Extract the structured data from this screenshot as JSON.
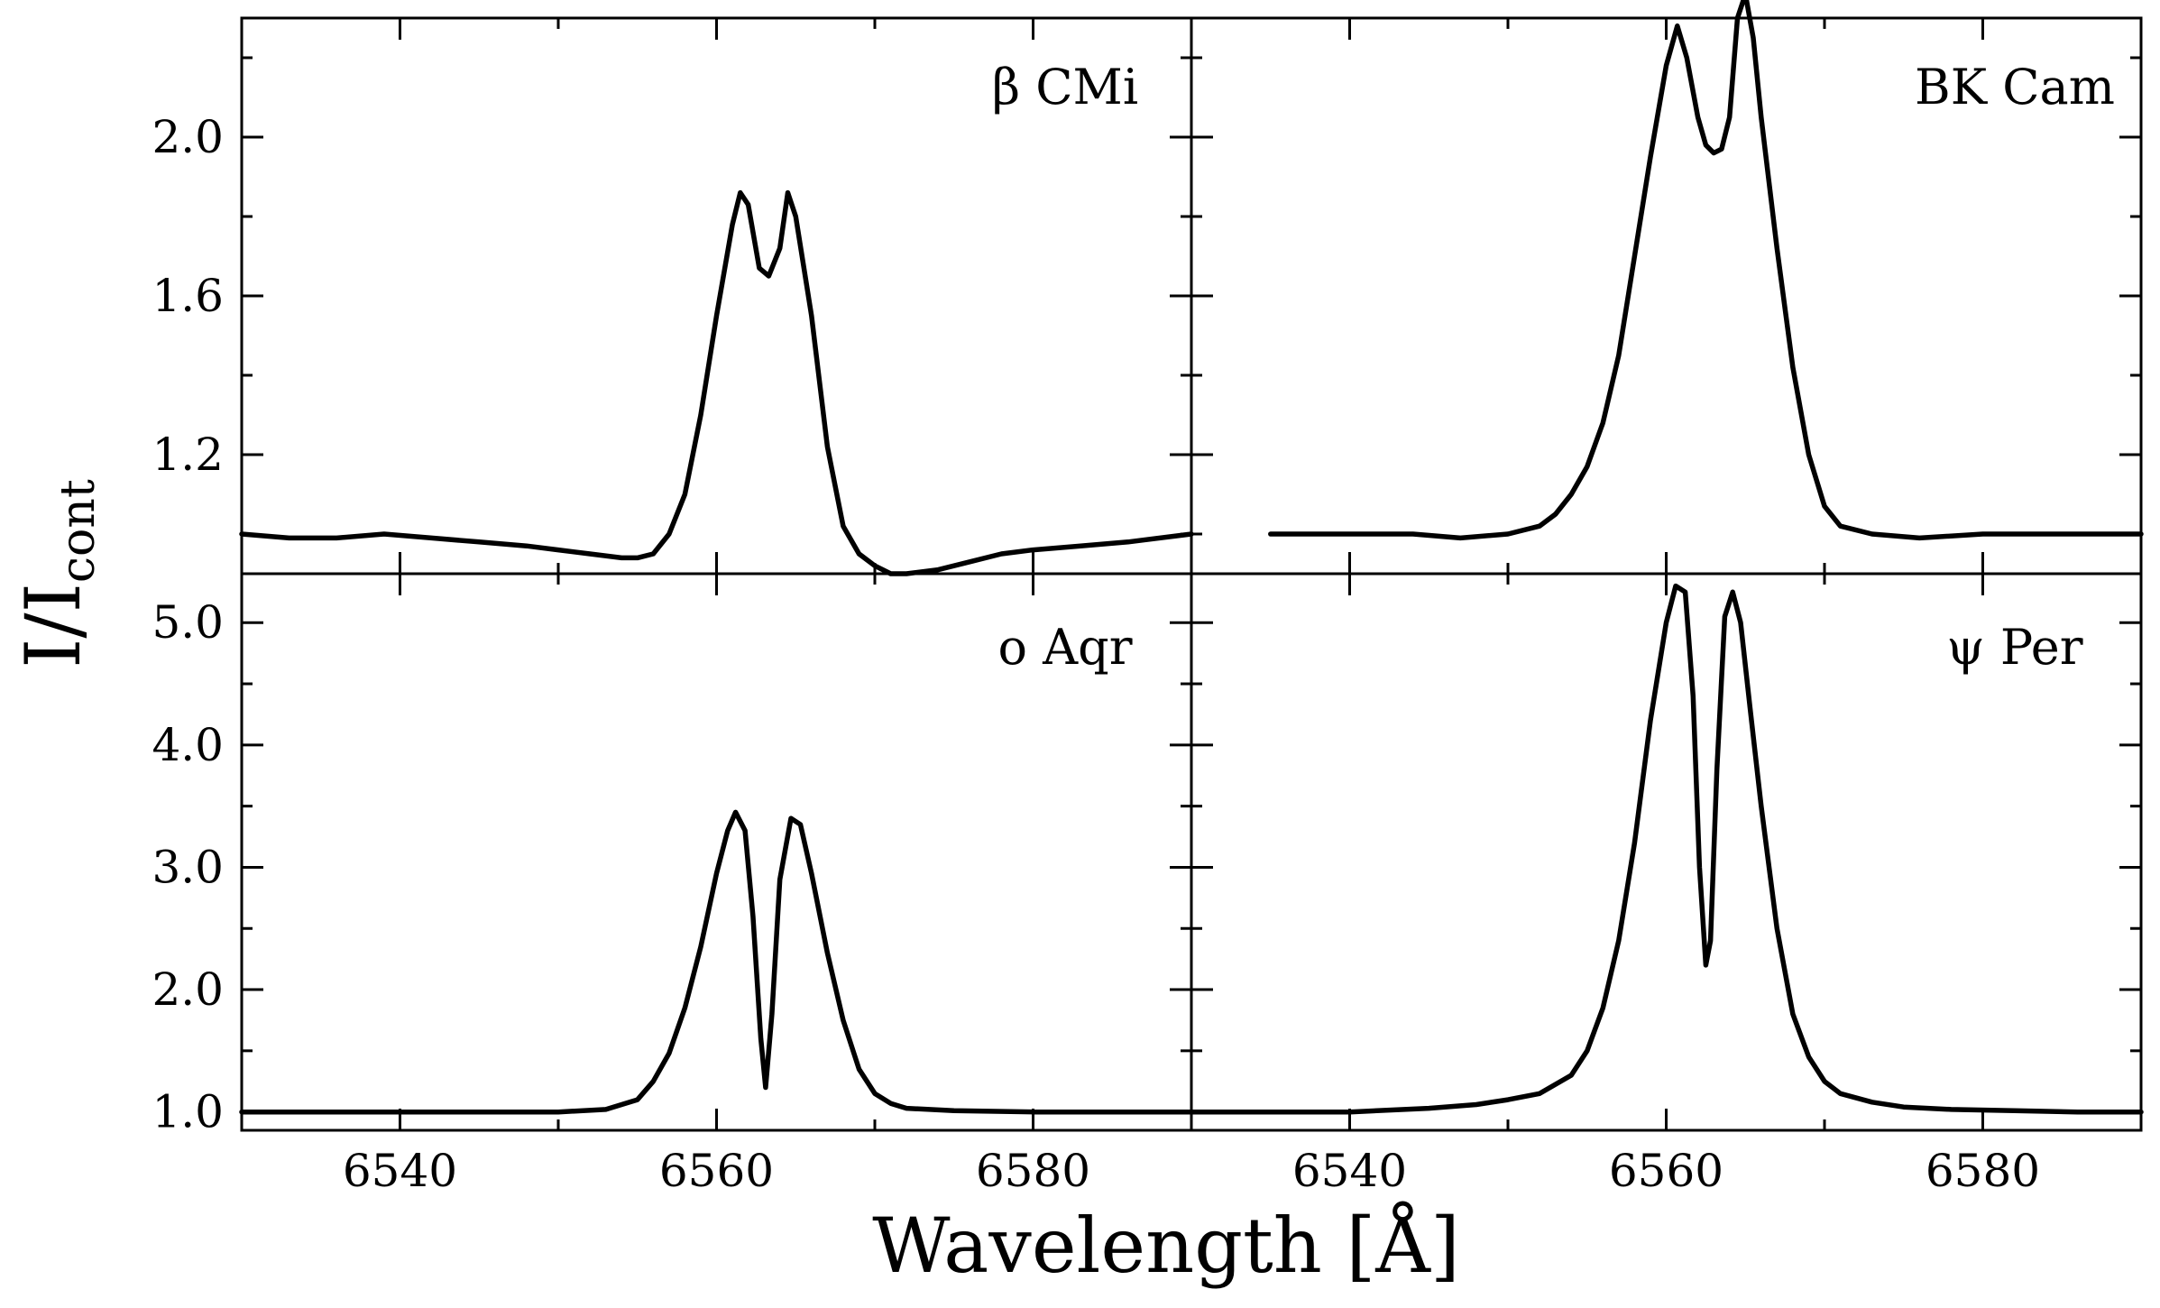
{
  "chart_data": {
    "type": "line",
    "xlabel": "Wavelength [Å]",
    "ylabel": "I/I",
    "ylabel_subscript": "cont",
    "xlim": [
      6530,
      6590
    ],
    "x_ticks": [
      6540,
      6560,
      6580
    ],
    "x_tick_labels": [
      "6540",
      "6560",
      "6580"
    ],
    "panels": [
      {
        "id": "beta-cmi",
        "label": "β CMi",
        "ylim": [
          0.9,
          2.3
        ],
        "y_ticks": [
          1.2,
          1.6,
          2.0
        ],
        "y_tick_labels": [
          "1.2",
          "1.6",
          "2.0"
        ],
        "x_tick_labels_visible": false,
        "series": [
          {
            "name": "β CMi",
            "x": [
              6530,
              6533,
              6536,
              6539,
              6542,
              6545,
              6548,
              6550,
              6552,
              6554,
              6555,
              6556,
              6557,
              6558,
              6559,
              6560,
              6561,
              6561.5,
              6562,
              6562.7,
              6563.3,
              6564,
              6564.5,
              6565,
              6566,
              6567,
              6568,
              6569,
              6570,
              6571,
              6572,
              6574,
              6576,
              6578,
              6580,
              6583,
              6586,
              6590
            ],
            "y": [
              1.0,
              0.99,
              0.99,
              1.0,
              0.99,
              0.98,
              0.97,
              0.96,
              0.95,
              0.94,
              0.94,
              0.95,
              1.0,
              1.1,
              1.3,
              1.55,
              1.78,
              1.86,
              1.83,
              1.67,
              1.65,
              1.72,
              1.86,
              1.8,
              1.55,
              1.22,
              1.02,
              0.95,
              0.92,
              0.9,
              0.9,
              0.91,
              0.93,
              0.95,
              0.96,
              0.97,
              0.98,
              1.0
            ]
          }
        ]
      },
      {
        "id": "bk-cam",
        "label": "BK Cam",
        "ylim": [
          0.9,
          2.3
        ],
        "y_ticks": [
          1.2,
          1.6,
          2.0
        ],
        "y_tick_labels": [
          "1.2",
          "1.6",
          "2.0"
        ],
        "x_tick_labels_visible": false,
        "series": [
          {
            "name": "BK Cam",
            "x": [
              6535,
              6538,
              6541,
              6544,
              6547,
              6550,
              6552,
              6553,
              6554,
              6555,
              6556,
              6557,
              6558,
              6559,
              6560,
              6560.7,
              6561.3,
              6562,
              6562.5,
              6563,
              6563.5,
              6564,
              6564.5,
              6565,
              6565.5,
              6566,
              6567,
              6568,
              6569,
              6570,
              6571,
              6573,
              6576,
              6580,
              6585,
              6590
            ],
            "y": [
              1.0,
              1.0,
              1.0,
              1.0,
              0.99,
              1.0,
              1.02,
              1.05,
              1.1,
              1.17,
              1.28,
              1.45,
              1.7,
              1.95,
              2.18,
              2.28,
              2.2,
              2.05,
              1.98,
              1.96,
              1.97,
              2.05,
              2.3,
              2.36,
              2.25,
              2.05,
              1.72,
              1.42,
              1.2,
              1.07,
              1.02,
              1.0,
              0.99,
              1.0,
              1.0,
              1.0
            ]
          }
        ]
      },
      {
        "id": "o-aqr",
        "label": "o Aqr",
        "ylim": [
          0.85,
          5.4
        ],
        "y_ticks": [
          1.0,
          2.0,
          3.0,
          4.0,
          5.0
        ],
        "y_tick_labels": [
          "1.0",
          "2.0",
          "3.0",
          "4.0",
          "5.0"
        ],
        "x_tick_labels_visible": true,
        "series": [
          {
            "name": "o Aqr",
            "x": [
              6530,
              6535,
              6540,
              6545,
              6550,
              6553,
              6555,
              6556,
              6557,
              6558,
              6559,
              6560,
              6560.7,
              6561.2,
              6561.8,
              6562.3,
              6562.8,
              6563.1,
              6563.5,
              6564,
              6564.7,
              6565.3,
              6566,
              6567,
              6568,
              6569,
              6570,
              6571,
              6572,
              6575,
              6580,
              6585,
              6590
            ],
            "y": [
              1.0,
              1.0,
              1.0,
              1.0,
              1.0,
              1.02,
              1.1,
              1.25,
              1.48,
              1.85,
              2.35,
              2.95,
              3.3,
              3.45,
              3.3,
              2.6,
              1.6,
              1.2,
              1.8,
              2.9,
              3.4,
              3.35,
              2.95,
              2.3,
              1.75,
              1.35,
              1.15,
              1.07,
              1.03,
              1.01,
              1.0,
              1.0,
              1.0
            ]
          }
        ]
      },
      {
        "id": "psi-per",
        "label": "ψ Per",
        "ylim": [
          0.85,
          5.4
        ],
        "y_ticks": [
          1.0,
          2.0,
          3.0,
          4.0,
          5.0
        ],
        "y_tick_labels": [
          "1.0",
          "2.0",
          "3.0",
          "4.0",
          "5.0"
        ],
        "x_tick_labels_visible": true,
        "series": [
          {
            "name": "ψ Per",
            "x": [
              6530,
              6535,
              6540,
              6545,
              6548,
              6550,
              6552,
              6554,
              6555,
              6556,
              6557,
              6558,
              6559,
              6560,
              6560.6,
              6561.2,
              6561.7,
              6562.1,
              6562.5,
              6562.8,
              6563.2,
              6563.7,
              6564.2,
              6564.7,
              6565.3,
              6566,
              6567,
              6568,
              6569,
              6570,
              6571,
              6573,
              6575,
              6578,
              6582,
              6586,
              6590
            ],
            "y": [
              1.0,
              1.0,
              1.0,
              1.03,
              1.06,
              1.1,
              1.15,
              1.3,
              1.5,
              1.85,
              2.4,
              3.2,
              4.2,
              5.0,
              5.3,
              5.25,
              4.4,
              3.0,
              2.2,
              2.4,
              3.8,
              5.05,
              5.25,
              5.0,
              4.3,
              3.5,
              2.5,
              1.8,
              1.45,
              1.25,
              1.15,
              1.08,
              1.04,
              1.02,
              1.01,
              1.0,
              1.0
            ]
          }
        ]
      }
    ]
  }
}
